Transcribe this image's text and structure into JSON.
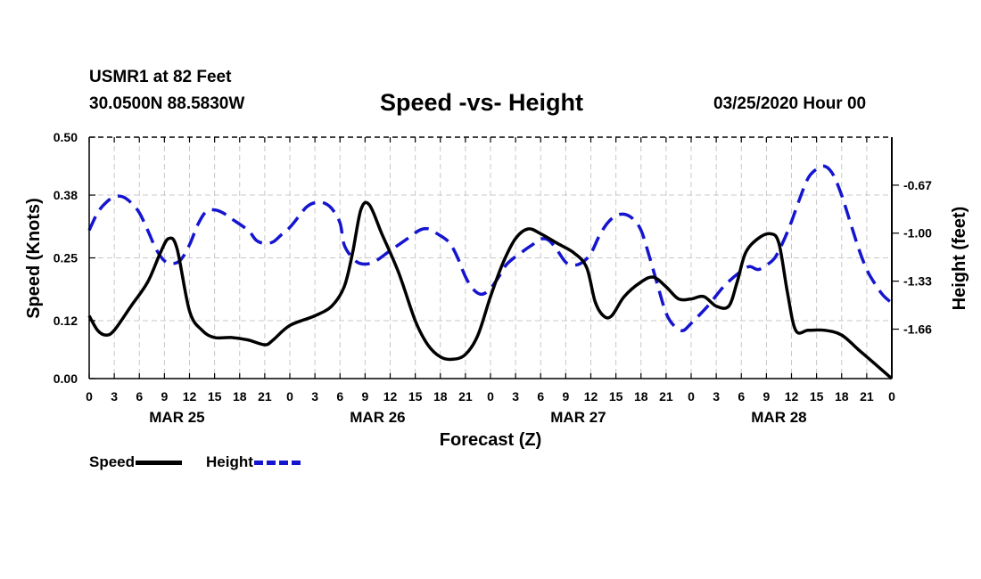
{
  "header": {
    "station": "USMR1 at 82 Feet",
    "coords": "30.0500N 88.5830W",
    "title": "Speed -vs- Height",
    "date": "03/25/2020 Hour 00"
  },
  "legend": {
    "speed": "Speed",
    "height": "Height"
  },
  "colors": {
    "speed": "#000000",
    "height": "#1515d0",
    "grid": "#c8c8c8"
  },
  "chart_data": {
    "type": "line",
    "title": "Speed -vs- Height",
    "xlabel": "Forecast (Z)",
    "ylabel": "Speed (Knots)",
    "y2label": "Height (feet)",
    "x_hours_range": [
      0,
      96
    ],
    "x_ticks": [
      "0",
      "3",
      "6",
      "9",
      "12",
      "15",
      "18",
      "21",
      "0",
      "3",
      "6",
      "9",
      "12",
      "15",
      "18",
      "21",
      "0",
      "3",
      "6",
      "9",
      "12",
      "15",
      "18",
      "21",
      "0",
      "3",
      "6",
      "9",
      "12",
      "15",
      "18",
      "21",
      "0"
    ],
    "day_labels": [
      {
        "label": "MAR 25",
        "hour": 10.5
      },
      {
        "label": "MAR 26",
        "hour": 34.5
      },
      {
        "label": "MAR 27",
        "hour": 58.5
      },
      {
        "label": "MAR 28",
        "hour": 82.5
      }
    ],
    "ylim": [
      0,
      0.5
    ],
    "y_ticks": [
      0.0,
      0.12,
      0.25,
      0.38,
      0.5
    ],
    "y_tick_labels": [
      "0.00",
      "0.12",
      "0.25",
      "0.38",
      "0.50"
    ],
    "y2lim": [
      -2.0,
      -0.34
    ],
    "y2_ticks": [
      -1.66,
      -1.33,
      -1.0,
      -0.67
    ],
    "y2_tick_labels": [
      "-1.66",
      "-1.33",
      "-1.00",
      "-0.67"
    ],
    "grid": true,
    "legend_position": "bottom-left",
    "series": [
      {
        "name": "Speed",
        "axis": "left",
        "style": "solid",
        "points": [
          [
            0,
            0.13
          ],
          [
            1,
            0.1
          ],
          [
            2,
            0.09
          ],
          [
            3,
            0.1
          ],
          [
            5,
            0.15
          ],
          [
            7,
            0.2
          ],
          [
            8.5,
            0.26
          ],
          [
            9.5,
            0.29
          ],
          [
            10.5,
            0.27
          ],
          [
            12,
            0.14
          ],
          [
            13.5,
            0.1
          ],
          [
            15,
            0.085
          ],
          [
            17,
            0.085
          ],
          [
            19,
            0.08
          ],
          [
            21,
            0.07
          ],
          [
            22,
            0.08
          ],
          [
            24,
            0.11
          ],
          [
            27,
            0.13
          ],
          [
            29,
            0.15
          ],
          [
            30.5,
            0.19
          ],
          [
            31.5,
            0.26
          ],
          [
            32.5,
            0.35
          ],
          [
            33.5,
            0.36
          ],
          [
            35,
            0.3
          ],
          [
            37,
            0.22
          ],
          [
            39,
            0.12
          ],
          [
            40.5,
            0.07
          ],
          [
            42,
            0.045
          ],
          [
            43.5,
            0.04
          ],
          [
            45,
            0.05
          ],
          [
            46.5,
            0.09
          ],
          [
            48,
            0.17
          ],
          [
            49.5,
            0.24
          ],
          [
            51,
            0.29
          ],
          [
            52.5,
            0.31
          ],
          [
            54,
            0.3
          ],
          [
            56,
            0.28
          ],
          [
            58,
            0.26
          ],
          [
            59.5,
            0.23
          ],
          [
            60.5,
            0.16
          ],
          [
            61.5,
            0.13
          ],
          [
            62.5,
            0.13
          ],
          [
            64,
            0.17
          ],
          [
            66,
            0.2
          ],
          [
            67.5,
            0.21
          ],
          [
            69,
            0.19
          ],
          [
            70.5,
            0.165
          ],
          [
            72,
            0.165
          ],
          [
            73.5,
            0.17
          ],
          [
            75,
            0.15
          ],
          [
            76.5,
            0.15
          ],
          [
            77.5,
            0.2
          ],
          [
            78.5,
            0.26
          ],
          [
            80,
            0.29
          ],
          [
            81.5,
            0.3
          ],
          [
            82.5,
            0.28
          ],
          [
            83.5,
            0.18
          ],
          [
            84.5,
            0.1
          ],
          [
            86,
            0.1
          ],
          [
            88,
            0.1
          ],
          [
            90,
            0.09
          ],
          [
            92,
            0.06
          ],
          [
            94,
            0.03
          ],
          [
            96,
            0.0
          ]
        ]
      },
      {
        "name": "Height",
        "axis": "right",
        "style": "dashed",
        "points": [
          [
            0,
            -0.98
          ],
          [
            1,
            -0.86
          ],
          [
            2,
            -0.79
          ],
          [
            3,
            -0.75
          ],
          [
            4,
            -0.75
          ],
          [
            5,
            -0.79
          ],
          [
            6,
            -0.86
          ],
          [
            7,
            -0.98
          ],
          [
            8,
            -1.11
          ],
          [
            9,
            -1.19
          ],
          [
            10,
            -1.21
          ],
          [
            11,
            -1.18
          ],
          [
            12,
            -1.08
          ],
          [
            13,
            -0.94
          ],
          [
            14,
            -0.85
          ],
          [
            15,
            -0.84
          ],
          [
            16,
            -0.86
          ],
          [
            17,
            -0.9
          ],
          [
            19,
            -0.98
          ],
          [
            20,
            -1.05
          ],
          [
            21,
            -1.07
          ],
          [
            22,
            -1.06
          ],
          [
            23,
            -1.01
          ],
          [
            24,
            -0.96
          ],
          [
            25,
            -0.89
          ],
          [
            26,
            -0.82
          ],
          [
            27,
            -0.79
          ],
          [
            28,
            -0.79
          ],
          [
            29,
            -0.83
          ],
          [
            30,
            -0.93
          ],
          [
            30.5,
            -1.08
          ],
          [
            31.5,
            -1.17
          ],
          [
            32.5,
            -1.21
          ],
          [
            34,
            -1.2
          ],
          [
            36,
            -1.12
          ],
          [
            38,
            -1.04
          ],
          [
            39.5,
            -0.98
          ],
          [
            40.5,
            -0.97
          ],
          [
            41.5,
            -1.0
          ],
          [
            43,
            -1.06
          ],
          [
            44,
            -1.16
          ],
          [
            45,
            -1.3
          ],
          [
            46,
            -1.39
          ],
          [
            47,
            -1.42
          ],
          [
            48,
            -1.38
          ],
          [
            49,
            -1.3
          ],
          [
            50,
            -1.21
          ],
          [
            52,
            -1.12
          ],
          [
            53,
            -1.08
          ],
          [
            54,
            -1.04
          ],
          [
            55,
            -1.05
          ],
          [
            56,
            -1.12
          ],
          [
            57,
            -1.2
          ],
          [
            58,
            -1.22
          ],
          [
            59,
            -1.2
          ],
          [
            60,
            -1.14
          ],
          [
            61,
            -1.02
          ],
          [
            62,
            -0.93
          ],
          [
            63,
            -0.88
          ],
          [
            64,
            -0.87
          ],
          [
            65,
            -0.9
          ],
          [
            66,
            -0.98
          ],
          [
            67,
            -1.16
          ],
          [
            68,
            -1.36
          ],
          [
            69,
            -1.55
          ],
          [
            70,
            -1.64
          ],
          [
            71,
            -1.67
          ],
          [
            72,
            -1.62
          ],
          [
            74,
            -1.5
          ],
          [
            76,
            -1.36
          ],
          [
            78,
            -1.26
          ],
          [
            79,
            -1.23
          ],
          [
            80,
            -1.25
          ],
          [
            81,
            -1.22
          ],
          [
            82,
            -1.17
          ],
          [
            83,
            -1.06
          ],
          [
            84,
            -0.92
          ],
          [
            85,
            -0.76
          ],
          [
            86,
            -0.62
          ],
          [
            87,
            -0.56
          ],
          [
            88,
            -0.54
          ],
          [
            89,
            -0.6
          ],
          [
            90,
            -0.74
          ],
          [
            91,
            -0.92
          ],
          [
            92,
            -1.1
          ],
          [
            93,
            -1.25
          ],
          [
            94,
            -1.35
          ],
          [
            95,
            -1.43
          ],
          [
            96,
            -1.48
          ]
        ]
      }
    ]
  }
}
